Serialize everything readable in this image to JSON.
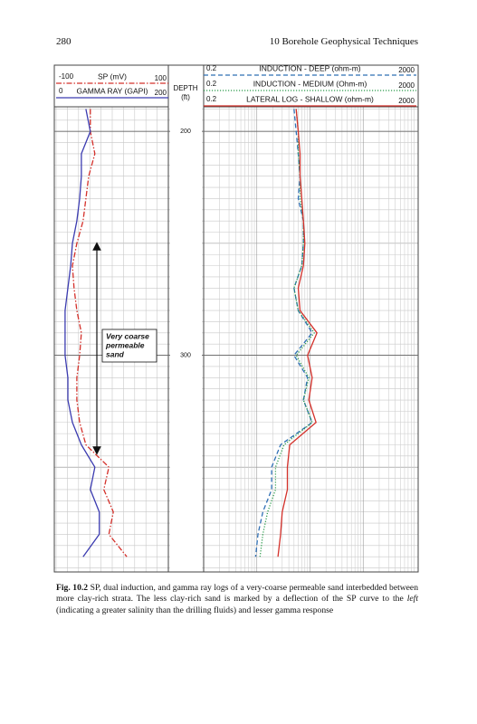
{
  "page": {
    "number": "280",
    "running_title": "10 Borehole Geophysical Techniques"
  },
  "chart_data": {
    "type": "well-log",
    "y_label": [
      "DEPTH",
      "(ft)"
    ],
    "ylim": [
      189,
      396
    ],
    "yticks": [
      200,
      300
    ],
    "grid": true,
    "annotation": [
      "Very coarse",
      "permeable",
      "sand"
    ],
    "depth": [
      190,
      200,
      210,
      220,
      230,
      240,
      250,
      260,
      270,
      280,
      290,
      300,
      310,
      320,
      330,
      340,
      350,
      360,
      370,
      380,
      390
    ],
    "series": [
      {
        "name": "SP (mV)",
        "color": "#d4302a",
        "style": "dash-dot",
        "xscale": "linear",
        "xlim": [
          -100,
          100
        ],
        "values": [
          -39,
          -39,
          -31,
          -42,
          -47,
          -52,
          -63,
          -71,
          -68,
          -63,
          -55,
          -58,
          -63,
          -63,
          -58,
          -47,
          -6,
          -15,
          2,
          -6,
          26
        ]
      },
      {
        "name": "GAMMA RAY (GAPI)",
        "color": "#3b3bb0",
        "style": "solid",
        "xscale": "linear",
        "xlim": [
          0,
          200
        ],
        "values": [
          53,
          61,
          45,
          45,
          42,
          37,
          29,
          26,
          21,
          16,
          16,
          16,
          21,
          21,
          29,
          45,
          69,
          61,
          77,
          77,
          48
        ]
      },
      {
        "name": "INDUCTION - DEEP (ohm-m)",
        "color": "#2f6fb5",
        "style": "dash",
        "xscale": "log",
        "xlim": [
          0.2,
          2000
        ],
        "values": [
          10,
          11,
          12,
          13,
          12,
          15,
          15,
          14,
          10,
          12,
          22,
          10,
          18,
          15,
          22,
          5.6,
          3.8,
          3.8,
          2.6,
          2.1,
          1.9
        ]
      },
      {
        "name": "INDUCTION - MEDIUM (Ohm-m)",
        "color": "#2a9a4a",
        "style": "dot",
        "xscale": "log",
        "xlim": [
          0.2,
          2000
        ],
        "values": [
          11,
          12,
          12,
          13,
          13,
          15,
          15,
          14,
          10,
          12,
          24,
          11,
          19,
          15,
          22,
          6.5,
          4.5,
          4.5,
          3.2,
          2.6,
          2.3
        ]
      },
      {
        "name": "LATERAL LOG - SHALLOW (ohm-m)",
        "color": "#d4302a",
        "style": "solid",
        "xscale": "log",
        "xlim": [
          0.2,
          2000
        ],
        "values": [
          11,
          12,
          13,
          13,
          14,
          15,
          16,
          15,
          12,
          13,
          27,
          18,
          22,
          19,
          26,
          8.3,
          7.5,
          7.5,
          6,
          5.6,
          5
        ]
      }
    ]
  },
  "caption": {
    "label": "Fig. 10.2",
    "parts": [
      " SP, dual induction, and gamma ray logs of a very-coarse permeable sand interbedded between more clay-rich strata. The less clay-rich sand is marked by a deflection of the SP curve to the ",
      "left",
      " (indicating a greater salinity than the drilling fluids) and lesser gamma response"
    ]
  }
}
